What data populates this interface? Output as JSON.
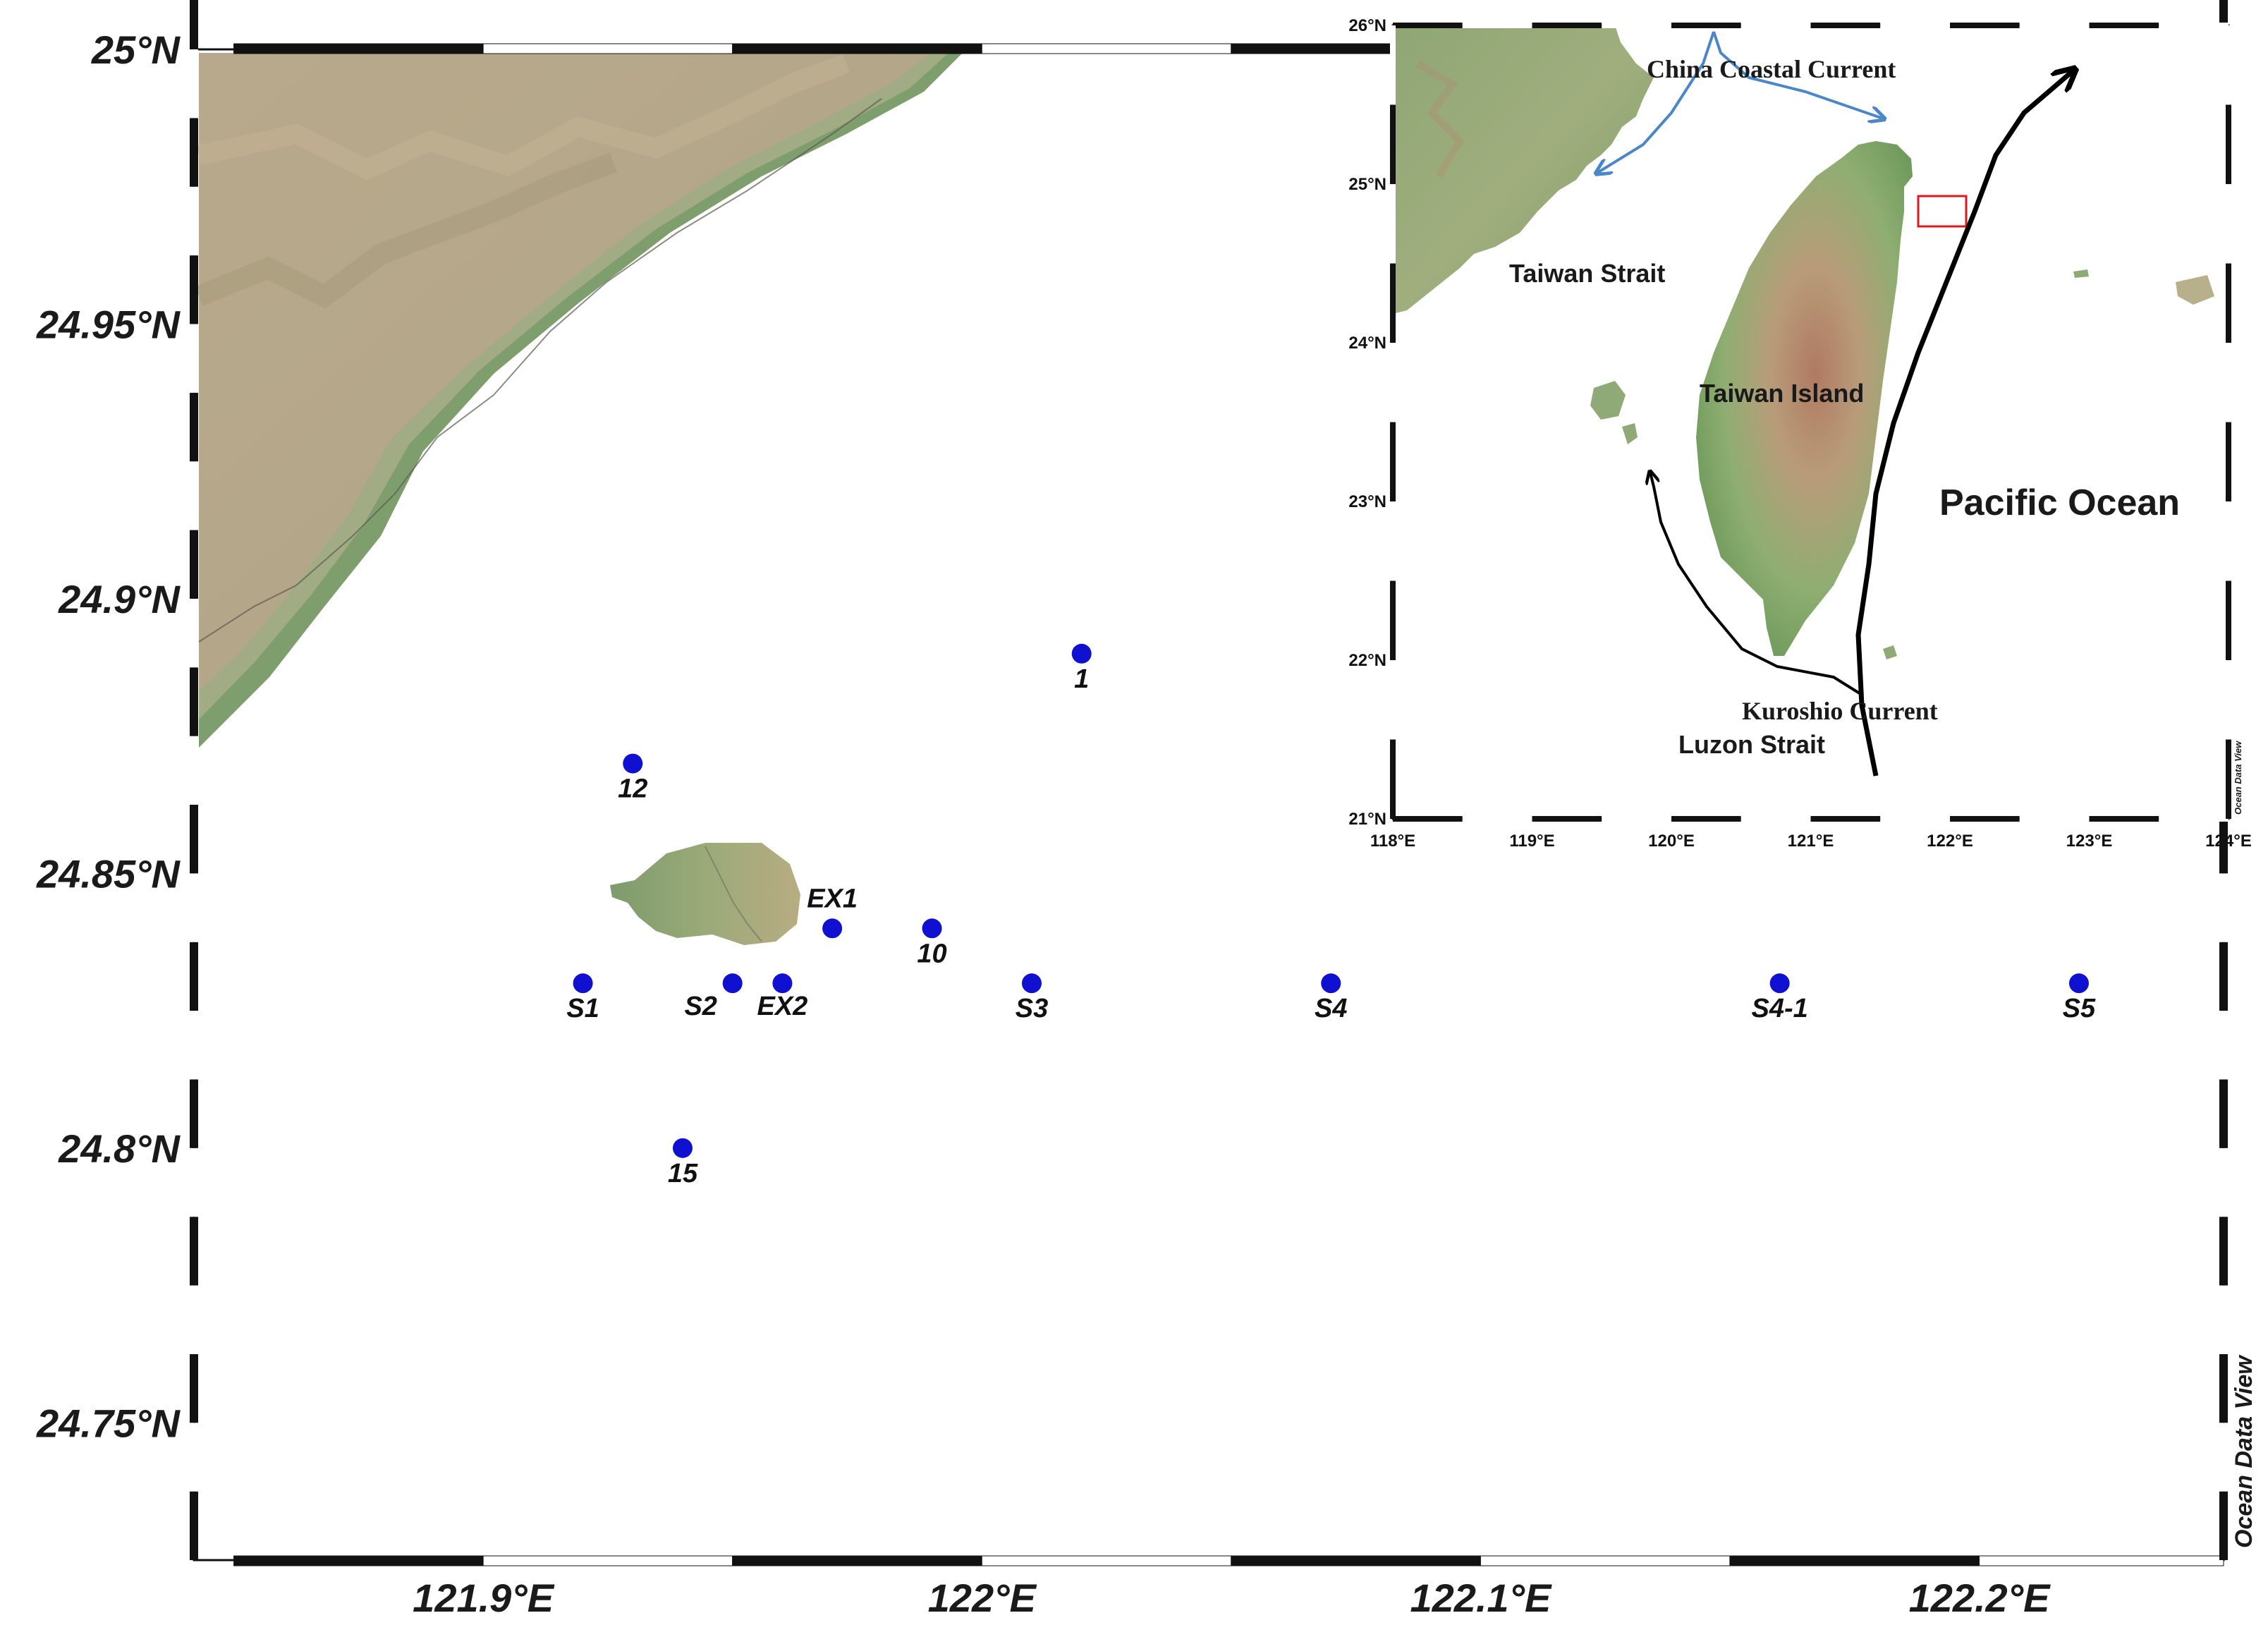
{
  "main_map": {
    "lat_labels": [
      "25°N",
      "24.95°N",
      "24.9°N",
      "24.85°N",
      "24.8°N",
      "24.75°N"
    ],
    "lon_labels": [
      "121.9°E",
      "122°E",
      "122.1°E",
      "122.2°E"
    ],
    "watermark": "Ocean Data View",
    "stations": [
      {
        "name": "1",
        "lon": 122.02,
        "lat": 24.89
      },
      {
        "name": "12",
        "lon": 121.93,
        "lat": 24.87
      },
      {
        "name": "EX1",
        "lon": 121.97,
        "lat": 24.84
      },
      {
        "name": "10",
        "lon": 121.99,
        "lat": 24.84
      },
      {
        "name": "S1",
        "lon": 121.92,
        "lat": 24.83
      },
      {
        "name": "S2",
        "lon": 121.95,
        "lat": 24.83
      },
      {
        "name": "EX2",
        "lon": 121.96,
        "lat": 24.83
      },
      {
        "name": "S3",
        "lon": 122.01,
        "lat": 24.83
      },
      {
        "name": "S4",
        "lon": 122.07,
        "lat": 24.83
      },
      {
        "name": "S4-1",
        "lon": 122.16,
        "lat": 24.83
      },
      {
        "name": "S5",
        "lon": 122.22,
        "lat": 24.83
      },
      {
        "name": "15",
        "lon": 121.94,
        "lat": 24.8
      }
    ],
    "station_color": "#1010d0"
  },
  "inset_map": {
    "lat_labels": [
      "26°N",
      "25°N",
      "24°N",
      "23°N",
      "22°N",
      "21°N"
    ],
    "lon_labels": [
      "118°E",
      "119°E",
      "120°E",
      "121°E",
      "122°E",
      "123°E",
      "124°E"
    ],
    "labels": {
      "china_coastal_current": "China Coastal Current",
      "taiwan_strait": "Taiwan Strait",
      "taiwan_island": "Taiwan Island",
      "pacific_ocean": "Pacific Ocean",
      "kuroshio_current": "Kuroshio Current",
      "luzon_strait": "Luzon Strait"
    },
    "watermark": "Ocean Data View",
    "colors": {
      "coastal_current": "#4a86c8",
      "kuroshio": "#000000",
      "study_box": "#e01818"
    }
  }
}
